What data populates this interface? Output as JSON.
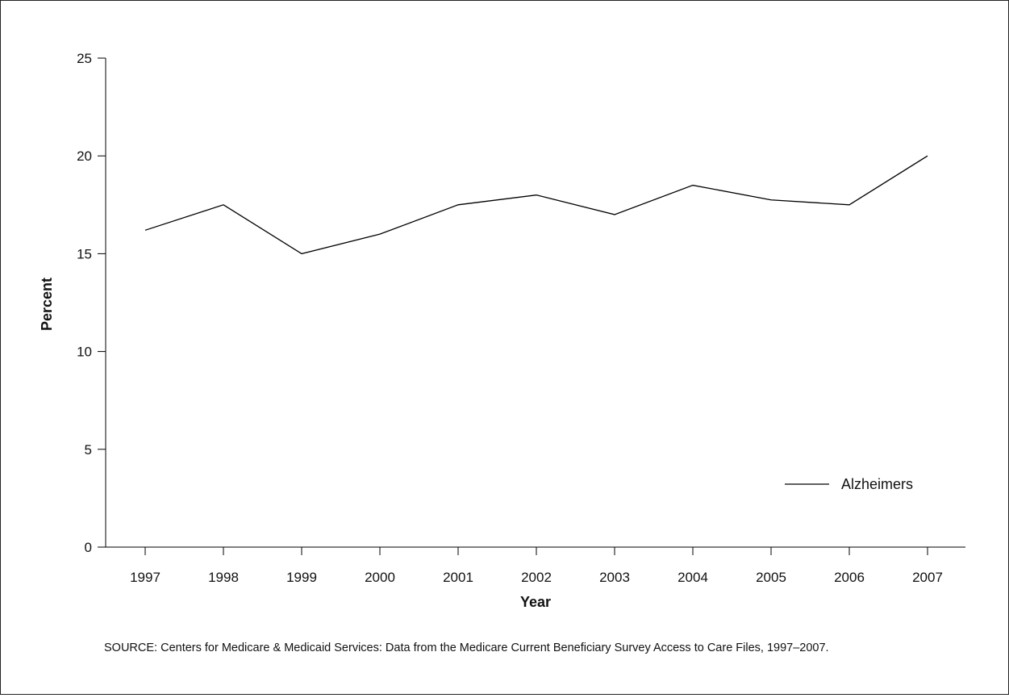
{
  "chart_data": {
    "type": "line",
    "xlabel": "Year",
    "ylabel": "Percent",
    "x": [
      "1997",
      "1998",
      "1999",
      "2000",
      "2001",
      "2002",
      "2003",
      "2004",
      "2005",
      "2006",
      "2007"
    ],
    "series": [
      {
        "name": "Alzheimers",
        "values": [
          16.2,
          17.5,
          15.0,
          16.0,
          17.5,
          18.0,
          17.0,
          18.5,
          17.75,
          17.5,
          20.0
        ]
      }
    ],
    "ylim": [
      0,
      25
    ],
    "yticks": [
      "0",
      "5",
      "10",
      "15",
      "20",
      "25"
    ],
    "grid": false,
    "legend_position": "lower-right",
    "line_color": "#000000"
  },
  "source_note": "SOURCE: Centers for Medicare & Medicaid Services: Data from the Medicare Current Beneficiary Survey Access to Care Files, 1997–2007."
}
